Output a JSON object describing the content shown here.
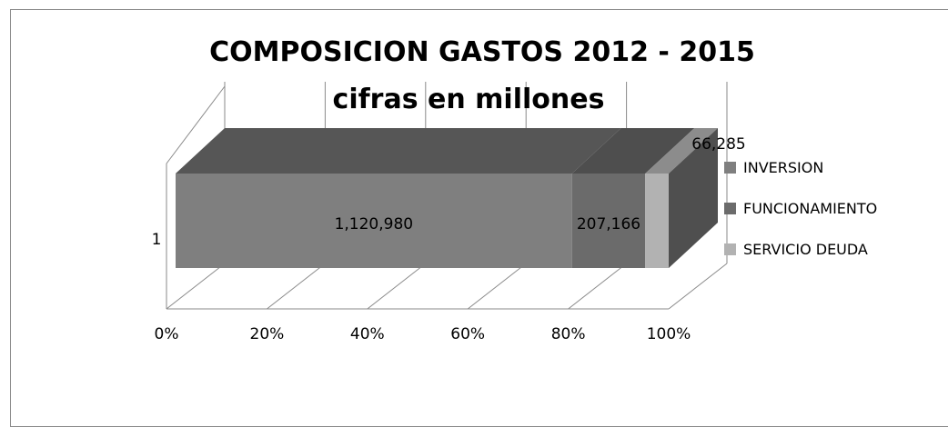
{
  "chart_data": {
    "type": "bar",
    "orientation": "horizontal",
    "stacked": "100%",
    "three_d": true,
    "title": "COMPOSICION GASTOS 2012 - 2015",
    "subtitle": "cifras en millones",
    "categories": [
      "1"
    ],
    "series": [
      {
        "name": "INVERSION",
        "values": [
          1120980
        ],
        "data_label": "1,120,980",
        "color": "#7f7f7f",
        "top_color": "#565656",
        "side_color": "#4a4a4a"
      },
      {
        "name": "FUNCIONAMIENTO",
        "values": [
          207166
        ],
        "data_label": "207,166",
        "color": "#6b6b6b",
        "top_color": "#4e4e4e",
        "side_color": "#484848"
      },
      {
        "name": "SERVICIO DEUDA",
        "values": [
          66285
        ],
        "data_label": "66,285",
        "color": "#b2b2b2",
        "top_color": "#8c8c8c",
        "side_color": "#4f4f4f"
      }
    ],
    "x_ticks": [
      "0%",
      "20%",
      "40%",
      "60%",
      "80%",
      "100%"
    ],
    "xlim": [
      0,
      1
    ],
    "grid": true,
    "legend_position": "right"
  }
}
